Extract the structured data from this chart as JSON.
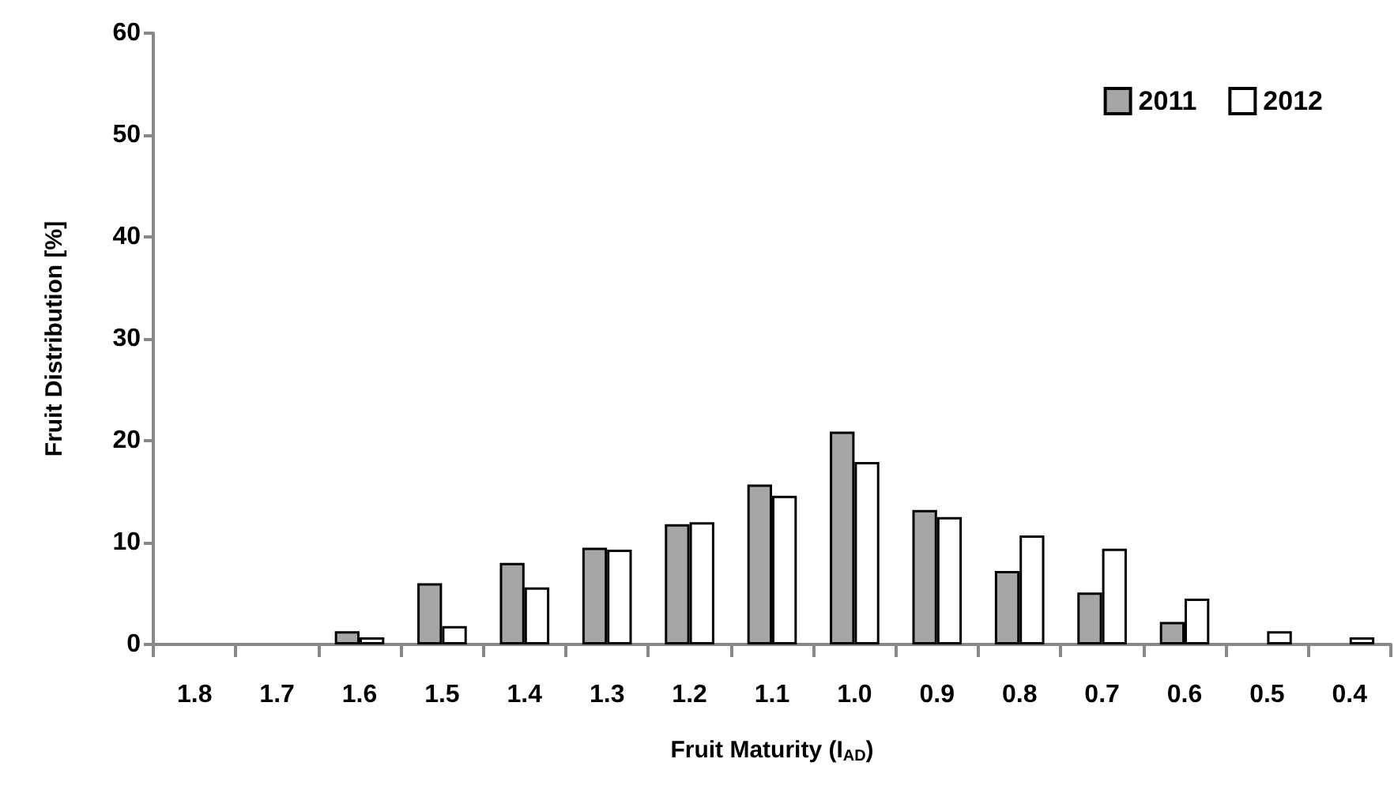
{
  "chart_data": {
    "type": "bar",
    "xlabel": "Fruit Maturity (I$_{AD}$)",
    "ylabel": "Fruit Distribution [%]",
    "categories": [
      "1.8",
      "1.7",
      "1.6",
      "1.5",
      "1.4",
      "1.3",
      "1.2",
      "1.1",
      "1.0",
      "0.9",
      "0.8",
      "0.7",
      "0.6",
      "0.5",
      "0.4"
    ],
    "series": [
      {
        "name": "2011",
        "color": "#a6a6a6",
        "values": [
          0,
          0,
          1.3,
          6,
          8,
          9.5,
          11.8,
          15.7,
          20.9,
          13.2,
          7.2,
          5.1,
          2.2,
          0,
          0
        ]
      },
      {
        "name": "2012",
        "color": "#ffffff",
        "values": [
          0,
          0,
          0.7,
          1.8,
          5.6,
          9.3,
          12,
          14.6,
          17.9,
          12.5,
          10.7,
          9.4,
          4.5,
          1.3,
          0.7
        ]
      }
    ],
    "ylim": [
      0,
      60
    ],
    "yticks": [
      0,
      10,
      20,
      30,
      40,
      50,
      60
    ],
    "grid": false,
    "legend": "top right"
  }
}
